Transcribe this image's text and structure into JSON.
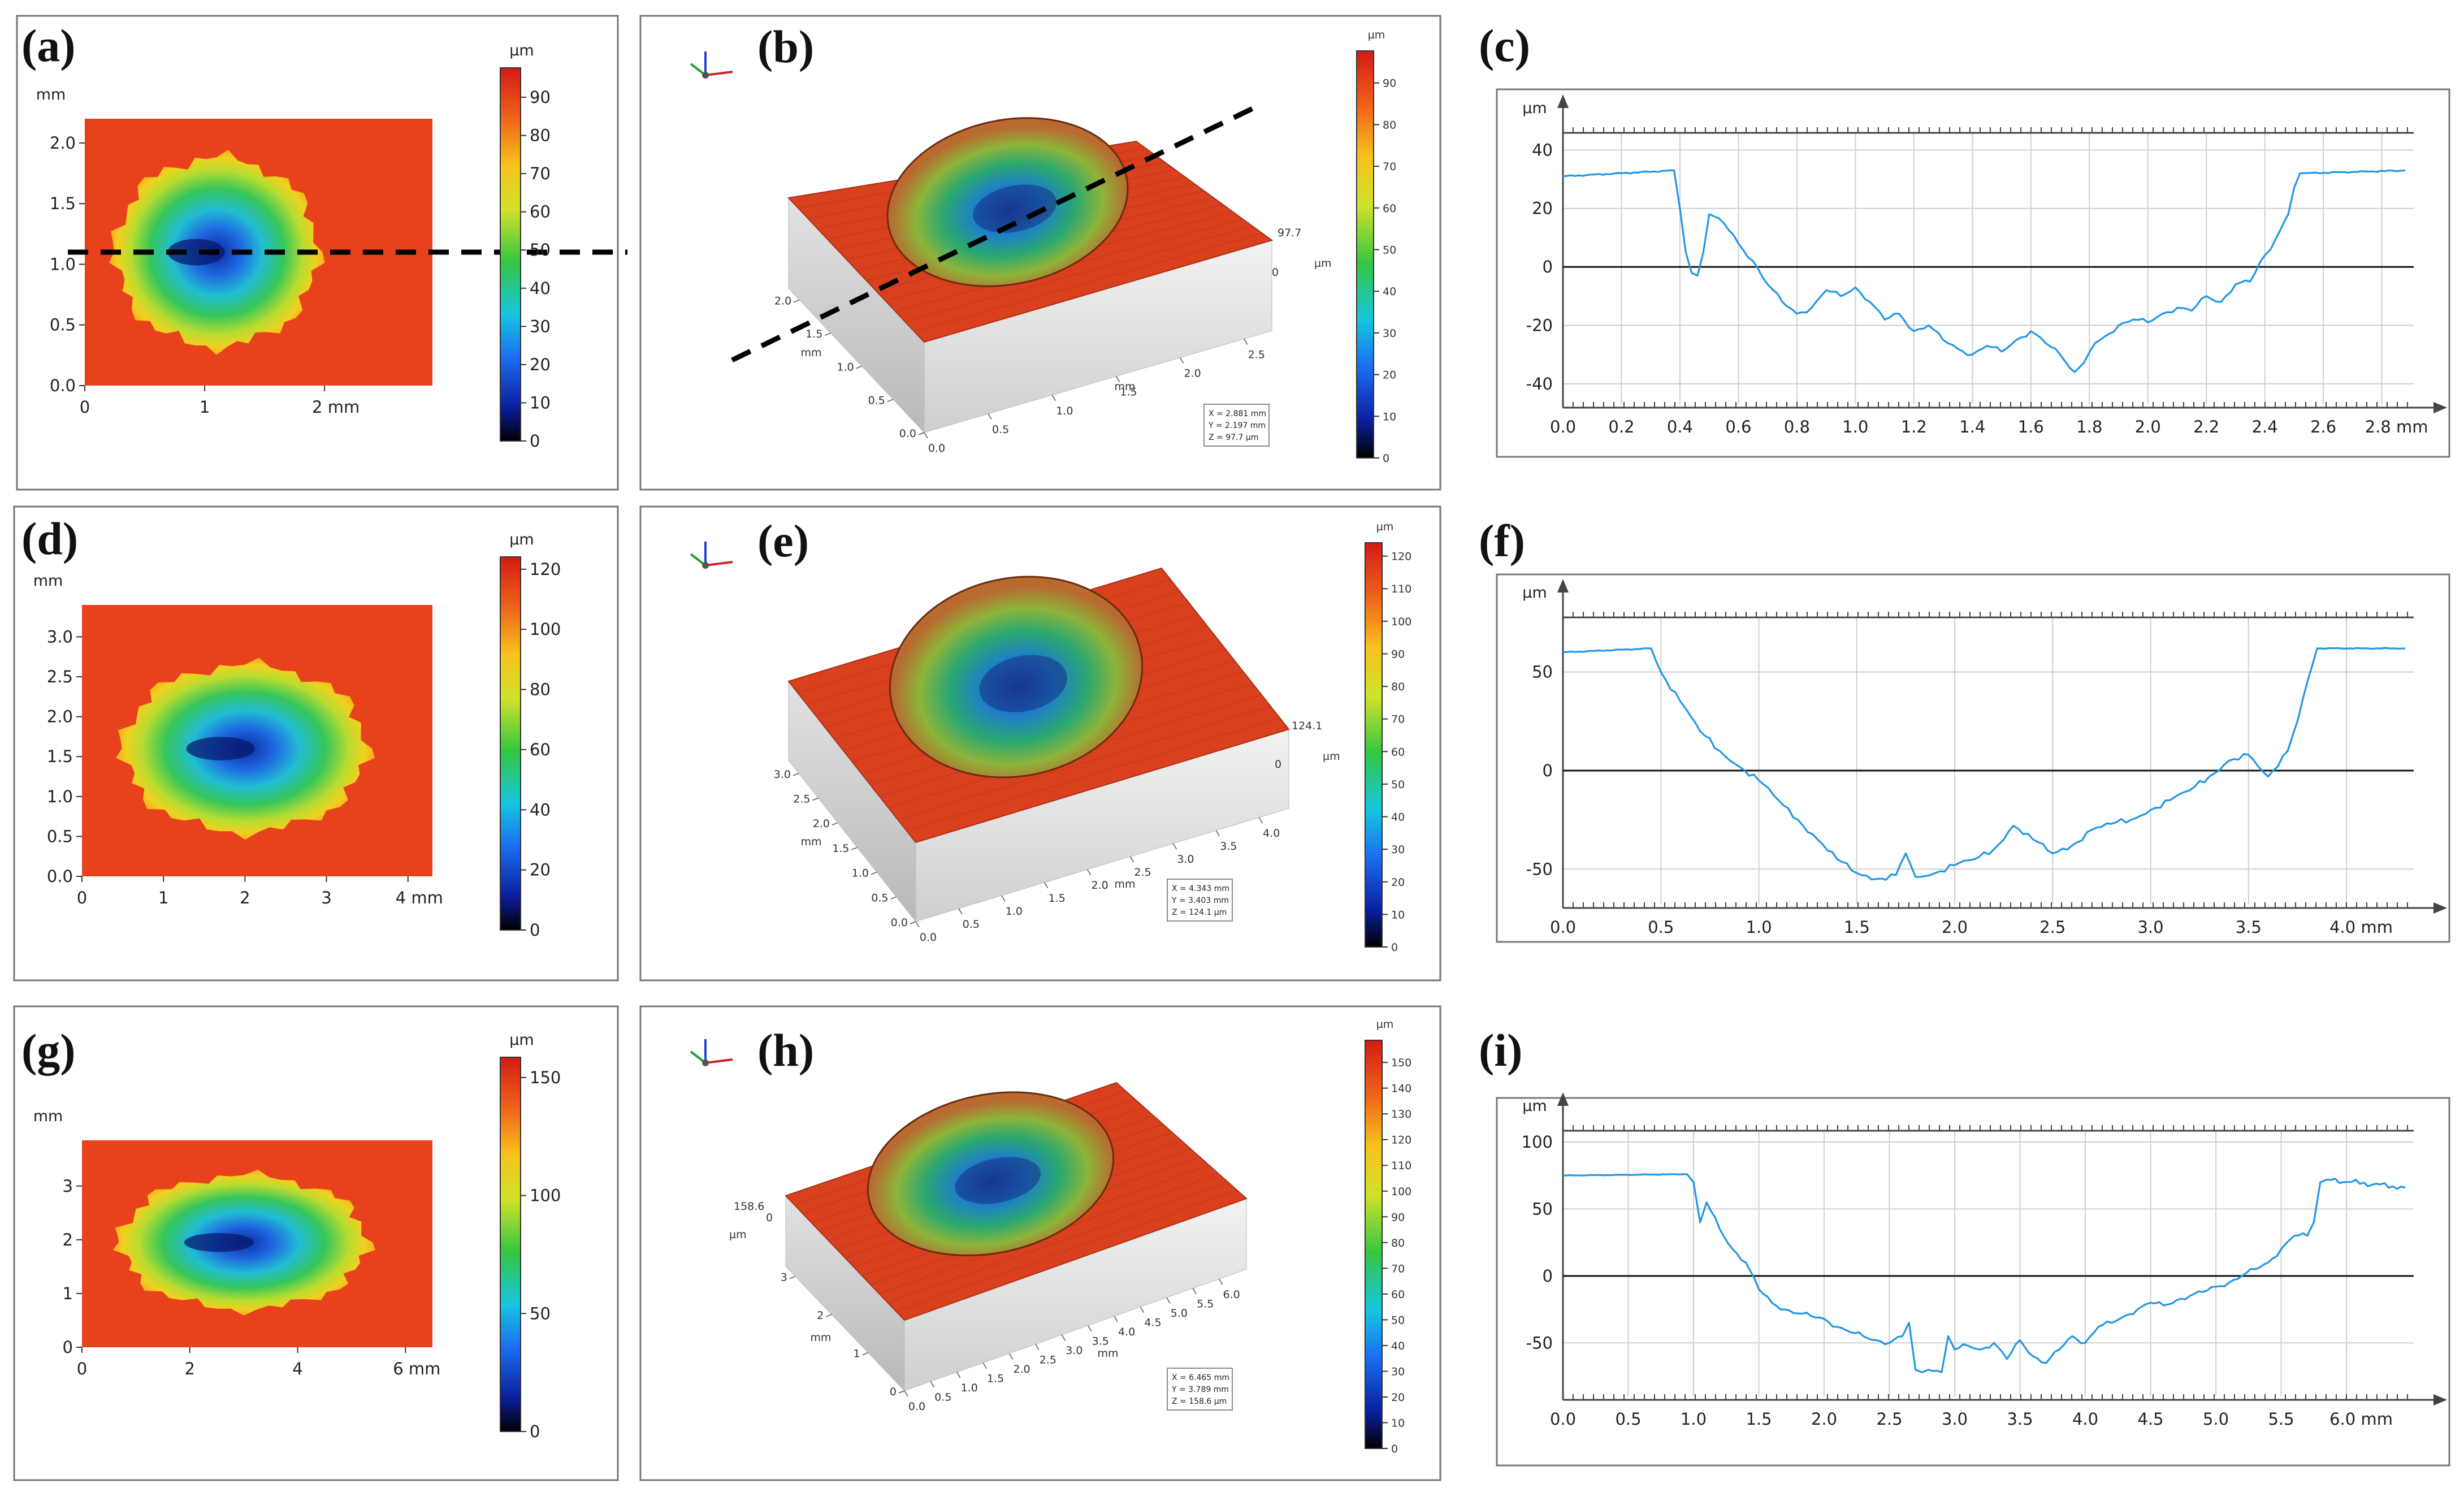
{
  "colors": {
    "surface": "#e8421c",
    "profile": "#2196e6",
    "axis": "#444444"
  },
  "units": {
    "mm": "mm",
    "um": "µm"
  },
  "icons": {
    "axis_triad": "xyz-axes-icon"
  },
  "panels": [
    {
      "tag": "(a)",
      "kind": "map"
    },
    {
      "tag": "(b)",
      "kind": "3d"
    },
    {
      "tag": "(c)",
      "kind": "profile"
    },
    {
      "tag": "(d)",
      "kind": "map"
    },
    {
      "tag": "(e)",
      "kind": "3d"
    },
    {
      "tag": "(f)",
      "kind": "profile"
    },
    {
      "tag": "(g)",
      "kind": "map"
    },
    {
      "tag": "(h)",
      "kind": "3d"
    },
    {
      "tag": "(i)",
      "kind": "profile"
    }
  ],
  "chart_data": [
    {
      "type": "heatmap",
      "panel": "(a)",
      "title": "",
      "x_ticks": [
        "0",
        "1",
        "2 mm"
      ],
      "y_ticks": [
        "0.0",
        "0.5",
        "1.0",
        "1.5",
        "2.0"
      ],
      "ylabel": "mm",
      "xlim": [
        0,
        2.9
      ],
      "ylim": [
        0,
        2.2
      ],
      "colorbar": {
        "label": "µm",
        "ticks": [
          "0",
          "10",
          "20",
          "30",
          "40",
          "50",
          "60",
          "70",
          "80",
          "90"
        ],
        "range": [
          0,
          97.7
        ]
      },
      "crater": {
        "cx": 1.1,
        "cy": 1.1,
        "rx": 0.85,
        "ry": 0.78
      },
      "section_line": "horizontal at y≈1.1 mm"
    },
    {
      "type": "surface3d",
      "panel": "(b)",
      "x_ticks": [
        "0.0",
        "0.5",
        "1.0",
        "1.5",
        "2.0",
        "2.5"
      ],
      "y_ticks": [
        "0.0",
        "0.5",
        "1.0",
        "1.5",
        "2.0"
      ],
      "z_label": "97.7",
      "z_ticks": [
        "0",
        "µm"
      ],
      "xlabel": "mm",
      "ylabel": "mm",
      "info": [
        "X = 2.881 mm",
        "Y = 2.197 mm",
        "Z = 97.7 µm"
      ],
      "colorbar": {
        "label": "µm",
        "ticks": [
          "0",
          "10",
          "20",
          "30",
          "40",
          "50",
          "60",
          "70",
          "80",
          "90"
        ],
        "range": [
          0,
          97.7
        ]
      }
    },
    {
      "type": "line",
      "panel": "(c)",
      "xlabel": "mm",
      "ylabel": "µm",
      "x_ticks": [
        "0.0",
        "0.2",
        "0.4",
        "0.6",
        "0.8",
        "1.0",
        "1.2",
        "1.4",
        "1.6",
        "1.8",
        "2.0",
        "2.2",
        "2.4",
        "2.6",
        "2.8 mm"
      ],
      "xlim": [
        0,
        2.88
      ],
      "y_ticks": [
        "-40",
        "-20",
        "0",
        "20",
        "40"
      ],
      "ylim": [
        -47,
        42
      ],
      "series": [
        {
          "name": "profile",
          "x": [
            0,
            0.38,
            0.4,
            0.42,
            0.44,
            0.46,
            0.48,
            0.5,
            0.55,
            0.6,
            0.65,
            0.7,
            0.75,
            0.8,
            0.85,
            0.9,
            0.95,
            1.0,
            1.05,
            1.1,
            1.15,
            1.2,
            1.25,
            1.3,
            1.35,
            1.4,
            1.45,
            1.5,
            1.55,
            1.6,
            1.65,
            1.7,
            1.75,
            1.78,
            1.82,
            1.85,
            1.9,
            1.95,
            2.0,
            2.05,
            2.1,
            2.15,
            2.2,
            2.25,
            2.3,
            2.35,
            2.4,
            2.42,
            2.45,
            2.48,
            2.5,
            2.52,
            2.88
          ],
          "y": [
            31,
            33,
            20,
            5,
            -2,
            -3,
            5,
            18,
            15,
            8,
            2,
            -6,
            -12,
            -16,
            -14,
            -8,
            -10,
            -7,
            -12,
            -18,
            -16,
            -22,
            -20,
            -25,
            -28,
            -30,
            -27,
            -29,
            -25,
            -22,
            -26,
            -30,
            -36,
            -33,
            -26,
            -24,
            -20,
            -18,
            -19,
            -16,
            -14,
            -15,
            -10,
            -12,
            -6,
            -5,
            4,
            6,
            12,
            18,
            27,
            32,
            33
          ]
        }
      ]
    },
    {
      "type": "heatmap",
      "panel": "(d)",
      "x_ticks": [
        "0",
        "1",
        "2",
        "3",
        "4 mm"
      ],
      "y_ticks": [
        "0.0",
        "0.5",
        "1.0",
        "1.5",
        "2.0",
        "2.5",
        "3.0"
      ],
      "ylabel": "mm",
      "xlim": [
        0,
        4.3
      ],
      "ylim": [
        0,
        3.4
      ],
      "colorbar": {
        "label": "µm",
        "ticks": [
          "0",
          "20",
          "40",
          "60",
          "80",
          "100",
          "120"
        ],
        "range": [
          0,
          124.1
        ]
      },
      "crater": {
        "cx": 2.0,
        "cy": 1.6,
        "rx": 1.5,
        "ry": 1.05
      }
    },
    {
      "type": "surface3d",
      "panel": "(e)",
      "x_ticks": [
        "0.0",
        "0.5",
        "1.0",
        "1.5",
        "2.0",
        "2.5",
        "3.0",
        "3.5",
        "4.0"
      ],
      "y_ticks": [
        "0.0",
        "0.5",
        "1.0",
        "1.5",
        "2.0",
        "2.5",
        "3.0"
      ],
      "z_label": "124.1",
      "z_ticks": [
        "0",
        "µm"
      ],
      "xlabel": "mm",
      "ylabel": "mm",
      "info": [
        "X = 4.343 mm",
        "Y = 3.403 mm",
        "Z = 124.1 µm"
      ],
      "colorbar": {
        "label": "µm",
        "ticks": [
          "0",
          "10",
          "20",
          "30",
          "40",
          "50",
          "60",
          "70",
          "80",
          "90",
          "100",
          "110",
          "120"
        ],
        "range": [
          0,
          124.1
        ]
      }
    },
    {
      "type": "line",
      "panel": "(f)",
      "xlabel": "mm",
      "ylabel": "µm",
      "x_ticks": [
        "0.0",
        "0.5",
        "1.0",
        "1.5",
        "2.0",
        "2.5",
        "3.0",
        "3.5",
        "4.0 mm"
      ],
      "xlim": [
        0,
        4.3
      ],
      "y_ticks": [
        "-50",
        "0",
        "50"
      ],
      "ylim": [
        -68,
        72
      ],
      "series": [
        {
          "name": "profile",
          "x": [
            0,
            0.45,
            0.5,
            0.6,
            0.7,
            0.8,
            0.9,
            1.0,
            1.1,
            1.2,
            1.3,
            1.4,
            1.5,
            1.6,
            1.7,
            1.75,
            1.8,
            1.9,
            2.0,
            2.1,
            2.2,
            2.3,
            2.4,
            2.5,
            2.6,
            2.7,
            2.8,
            2.9,
            3.0,
            3.1,
            3.2,
            3.3,
            3.4,
            3.5,
            3.55,
            3.6,
            3.7,
            3.75,
            3.8,
            3.85,
            4.3
          ],
          "y": [
            60,
            62,
            50,
            35,
            20,
            10,
            2,
            -5,
            -15,
            -25,
            -35,
            -45,
            -52,
            -55,
            -53,
            -42,
            -54,
            -52,
            -48,
            -45,
            -40,
            -28,
            -35,
            -42,
            -38,
            -30,
            -27,
            -25,
            -20,
            -15,
            -10,
            -3,
            5,
            8,
            2,
            -3,
            10,
            25,
            45,
            62,
            62
          ]
        }
      ]
    },
    {
      "type": "heatmap",
      "panel": "(g)",
      "x_ticks": [
        "0",
        "2",
        "4",
        "6 mm"
      ],
      "y_ticks": [
        "0",
        "1",
        "2",
        "3"
      ],
      "ylabel": "mm",
      "xlim": [
        0,
        6.5
      ],
      "ylim": [
        0,
        3.85
      ],
      "colorbar": {
        "label": "µm",
        "ticks": [
          "0",
          "50",
          "100",
          "150"
        ],
        "range": [
          0,
          158.6
        ]
      },
      "crater": {
        "cx": 3.0,
        "cy": 1.95,
        "rx": 2.3,
        "ry": 1.25
      }
    },
    {
      "type": "surface3d",
      "panel": "(h)",
      "x_ticks": [
        "0.0",
        "0.5",
        "1.0",
        "1.5",
        "2.0",
        "2.5",
        "3.0",
        "3.5",
        "4.0",
        "4.5",
        "5.0",
        "5.5",
        "6.0"
      ],
      "y_ticks": [
        "0",
        "1",
        "2",
        "3"
      ],
      "z_label": "158.6",
      "z_ticks": [
        "0",
        "µm"
      ],
      "xlabel": "mm",
      "ylabel": "mm",
      "info": [
        "X = 6.465 mm",
        "Y = 3.789 mm",
        "Z = 158.6 µm"
      ],
      "colorbar": {
        "label": "µm",
        "ticks": [
          "0",
          "10",
          "20",
          "30",
          "40",
          "50",
          "60",
          "70",
          "80",
          "90",
          "100",
          "110",
          "120",
          "130",
          "140",
          "150"
        ],
        "range": [
          0,
          158.6
        ]
      }
    },
    {
      "type": "line",
      "panel": "(i)",
      "xlabel": "mm",
      "ylabel": "µm",
      "x_ticks": [
        "0.0",
        "0.5",
        "1.0",
        "1.5",
        "2.0",
        "2.5",
        "3.0",
        "3.5",
        "4.0",
        "4.5",
        "5.0",
        "5.5",
        "6.0 mm"
      ],
      "xlim": [
        0,
        6.45
      ],
      "y_ticks": [
        "-50",
        "0",
        "50",
        "100"
      ],
      "ylim": [
        -90,
        100
      ],
      "series": [
        {
          "name": "profile",
          "x": [
            0,
            0.95,
            1.0,
            1.05,
            1.1,
            1.2,
            1.3,
            1.4,
            1.5,
            1.6,
            1.7,
            1.8,
            1.9,
            2.0,
            2.1,
            2.2,
            2.3,
            2.4,
            2.5,
            2.6,
            2.65,
            2.7,
            2.75,
            2.8,
            2.9,
            2.95,
            3.0,
            3.1,
            3.2,
            3.3,
            3.4,
            3.5,
            3.6,
            3.7,
            3.8,
            3.9,
            4.0,
            4.1,
            4.2,
            4.3,
            4.4,
            4.5,
            4.6,
            4.7,
            4.8,
            4.9,
            5.0,
            5.1,
            5.2,
            5.3,
            5.4,
            5.5,
            5.6,
            5.7,
            5.75,
            5.8,
            5.85,
            6.45
          ],
          "y": [
            75,
            76,
            70,
            40,
            55,
            35,
            20,
            10,
            -10,
            -20,
            -25,
            -28,
            -30,
            -32,
            -38,
            -42,
            -45,
            -48,
            -50,
            -45,
            -35,
            -70,
            -72,
            -70,
            -72,
            -45,
            -55,
            -52,
            -55,
            -50,
            -62,
            -48,
            -60,
            -65,
            -55,
            -45,
            -50,
            -38,
            -35,
            -30,
            -25,
            -20,
            -22,
            -18,
            -15,
            -12,
            -8,
            -5,
            0,
            5,
            10,
            20,
            30,
            30,
            40,
            70,
            72,
            66
          ]
        }
      ]
    }
  ]
}
